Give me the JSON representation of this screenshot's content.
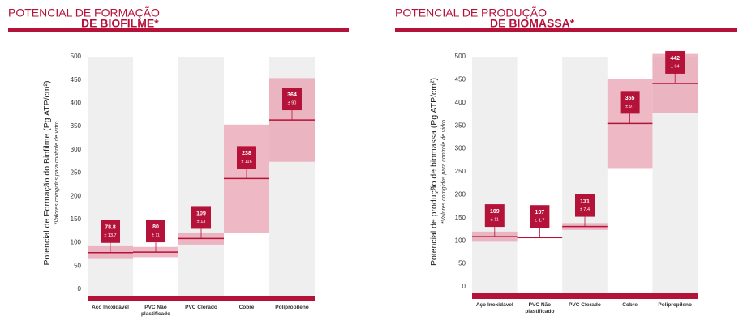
{
  "chart_data": [
    {
      "type": "range-bar",
      "title": "POTENCIAL DE FORMAÇÃO",
      "subtitle": "DE BIOFILME*",
      "y_label": "Potencial de Formação do Biofilme (Pg ATP/cm²)",
      "note": "*Valores corrigidos para controle de vidro",
      "categories": [
        "Aço Inoxidável",
        "PVC Não plastificado",
        "PVC Clorado",
        "Cobre",
        "Polipropileno"
      ],
      "values": [
        78.8,
        80,
        109,
        238,
        364
      ],
      "errors": [
        13.7,
        11,
        13,
        116,
        90
      ],
      "error_labels": [
        "± 13.7",
        "± 11",
        "± 13",
        "± 116",
        "± 90"
      ],
      "ylim": [
        0,
        500
      ],
      "yticks": [
        0,
        50,
        100,
        150,
        200,
        250,
        300,
        350,
        400,
        450,
        500
      ],
      "color": "#b5123a",
      "band_color": "#e8a0b0"
    },
    {
      "type": "range-bar",
      "title": "POTENCIAL DE PRODUÇÃO",
      "subtitle": "DE BIOMASSA*",
      "y_label": "Potencial de produção de biomassa (Pg ATP/cm²)",
      "note": "*Valores corrigidos para controle de vidro",
      "categories": [
        "Aço Inoxidável",
        "PVC Não plastificado",
        "PVC Clorado",
        "Cobre",
        "Polipropileno"
      ],
      "values": [
        109,
        107,
        131,
        355,
        442
      ],
      "errors": [
        11,
        1.7,
        7.4,
        97,
        64
      ],
      "error_labels": [
        "± 11",
        "± 1.7",
        "± 7.4",
        "± 97",
        "± 64"
      ],
      "ylim": [
        0,
        500
      ],
      "yticks": [
        0,
        50,
        100,
        150,
        200,
        250,
        300,
        350,
        400,
        450,
        500
      ],
      "color": "#b5123a",
      "band_color": "#e8a0b0"
    }
  ]
}
